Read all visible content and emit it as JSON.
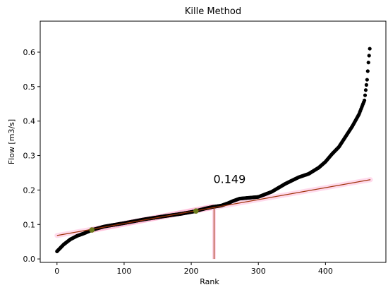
{
  "chart_data": {
    "type": "scatter",
    "title": "Kille Method",
    "xlabel": "Rank",
    "ylabel": "Flow [m3/s]",
    "xlim": [
      -25,
      490
    ],
    "ylim": [
      -0.01,
      0.69
    ],
    "xticks": [
      0,
      100,
      200,
      300,
      400
    ],
    "yticks": [
      0.0,
      0.1,
      0.2,
      0.3,
      0.4,
      0.5,
      0.6
    ],
    "xtick_labels": [
      "0",
      "100",
      "200",
      "300",
      "400"
    ],
    "ytick_labels": [
      "0.0",
      "0.1",
      "0.2",
      "0.3",
      "0.4",
      "0.5",
      "0.6"
    ],
    "grid": false,
    "n_points": 467,
    "series": [
      {
        "kind": "sorted_flow_points",
        "color": "#000000",
        "control_points": [
          [
            0,
            0.022
          ],
          [
            5,
            0.032
          ],
          [
            10,
            0.042
          ],
          [
            20,
            0.057
          ],
          [
            30,
            0.067
          ],
          [
            40,
            0.074
          ],
          [
            52,
            0.084
          ],
          [
            70,
            0.094
          ],
          [
            100,
            0.104
          ],
          [
            130,
            0.115
          ],
          [
            160,
            0.124
          ],
          [
            185,
            0.131
          ],
          [
            205,
            0.138
          ],
          [
            220,
            0.146
          ],
          [
            232,
            0.151
          ],
          [
            245,
            0.155
          ],
          [
            255,
            0.162
          ],
          [
            262,
            0.168
          ],
          [
            272,
            0.175
          ],
          [
            300,
            0.18
          ],
          [
            320,
            0.195
          ],
          [
            340,
            0.218
          ],
          [
            360,
            0.237
          ],
          [
            375,
            0.247
          ],
          [
            390,
            0.265
          ],
          [
            400,
            0.282
          ],
          [
            410,
            0.305
          ],
          [
            420,
            0.325
          ],
          [
            430,
            0.355
          ],
          [
            440,
            0.385
          ],
          [
            450,
            0.42
          ],
          [
            458,
            0.46
          ],
          [
            462,
            0.52
          ],
          [
            464,
            0.57
          ],
          [
            466,
            0.61
          ],
          [
            467,
            0.655
          ]
        ]
      },
      {
        "kind": "fit_line",
        "color": "#a0330a",
        "x": [
          0,
          467
        ],
        "y": [
          0.068,
          0.23
        ]
      },
      {
        "kind": "fit_points",
        "color": "#6b7a1a",
        "x": [
          52,
          207
        ],
        "y": [
          0.084,
          0.139
        ]
      },
      {
        "kind": "threshold_vline",
        "color": "#a0330a",
        "x": 234,
        "y": [
          0.0,
          0.151
        ]
      }
    ],
    "annotations": [
      {
        "text": "0.149",
        "x": 233,
        "y": 0.22
      }
    ]
  }
}
